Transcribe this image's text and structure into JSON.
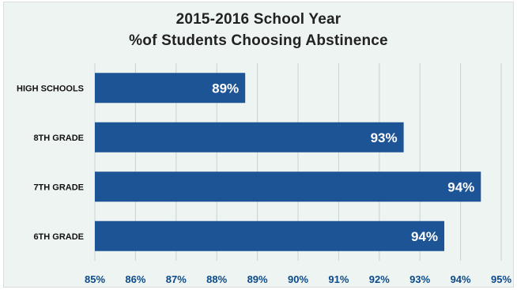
{
  "chart_data": {
    "type": "bar",
    "orientation": "horizontal",
    "title": [
      "2015-2016 School Year",
      "%of Students Choosing Abstinence"
    ],
    "categories": [
      "HIGH SCHOOLS",
      "8TH GRADE",
      "7TH GRADE",
      "6TH GRADE"
    ],
    "values": [
      88.7,
      92.6,
      94.5,
      93.6
    ],
    "data_labels": [
      "89%",
      "93%",
      "94%",
      "94%"
    ],
    "xlim": [
      85,
      95
    ],
    "x_ticks": [
      "85%",
      "86%",
      "87%",
      "88%",
      "89%",
      "90%",
      "91%",
      "92%",
      "93%",
      "94%",
      "95%"
    ],
    "grid": "vertical",
    "legend": "none",
    "colors": {
      "bar": "#1d5496",
      "background": "#eef4f1",
      "grid": "#c9d2ce",
      "tick_label": "#0b4a8a"
    }
  }
}
